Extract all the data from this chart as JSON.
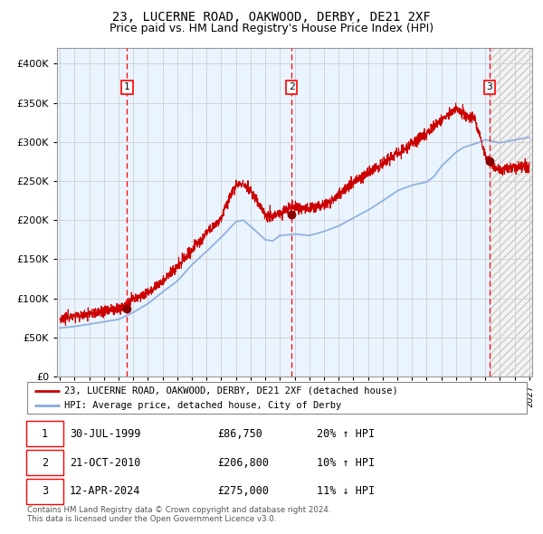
{
  "title": "23, LUCERNE ROAD, OAKWOOD, DERBY, DE21 2XF",
  "subtitle": "Price paid vs. HM Land Registry's House Price Index (HPI)",
  "ylim": [
    0,
    420000
  ],
  "yticks": [
    0,
    50000,
    100000,
    150000,
    200000,
    250000,
    300000,
    350000,
    400000
  ],
  "ytick_labels": [
    "£0",
    "£50K",
    "£100K",
    "£150K",
    "£200K",
    "£250K",
    "£300K",
    "£350K",
    "£400K"
  ],
  "start_year": 1995,
  "end_year": 2027,
  "transactions": [
    {
      "label": 1,
      "date": "30-JUL-1999",
      "year": 1999.58,
      "price": 86750,
      "hpi_relation": "20% ↑ HPI"
    },
    {
      "label": 2,
      "date": "21-OCT-2010",
      "year": 2010.8,
      "price": 206800,
      "hpi_relation": "10% ↑ HPI"
    },
    {
      "label": 3,
      "date": "12-APR-2024",
      "year": 2024.28,
      "price": 275000,
      "hpi_relation": "11% ↓ HPI"
    }
  ],
  "line_color_property": "#cc0000",
  "line_color_hpi": "#88aadd",
  "background_shade_color": "#ddeeff",
  "grid_color": "#cccccc",
  "dot_color": "#880000",
  "title_fontsize": 10,
  "subtitle_fontsize": 9,
  "axis_fontsize": 8,
  "legend_label_property": "23, LUCERNE ROAD, OAKWOOD, DERBY, DE21 2XF (detached house)",
  "legend_label_hpi": "HPI: Average price, detached house, City of Derby",
  "footer_line1": "Contains HM Land Registry data © Crown copyright and database right 2024.",
  "footer_line2": "This data is licensed under the Open Government Licence v3.0.",
  "table_rows": [
    [
      1,
      "30-JUL-1999",
      "£86,750",
      "20% ↑ HPI"
    ],
    [
      2,
      "21-OCT-2010",
      "£206,800",
      "10% ↑ HPI"
    ],
    [
      3,
      "12-APR-2024",
      "£275,000",
      "11% ↓ HPI"
    ]
  ]
}
